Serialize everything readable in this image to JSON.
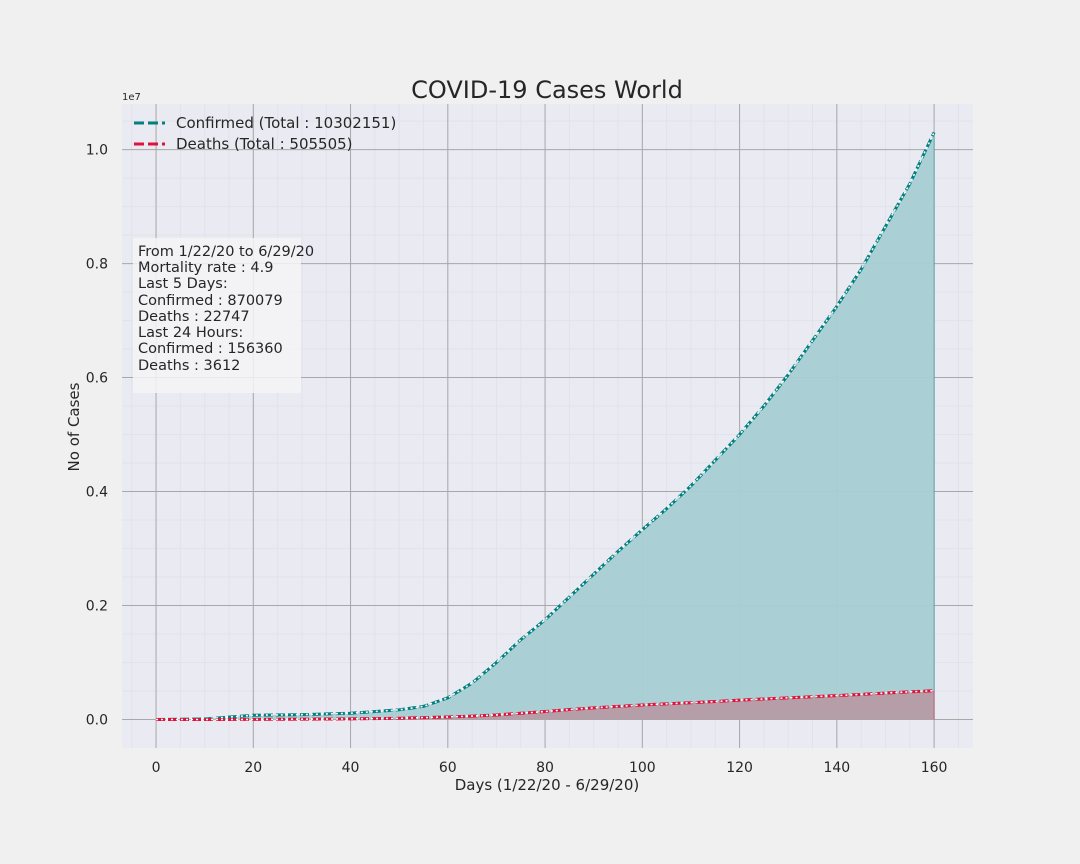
{
  "chart_data": {
    "type": "area",
    "title": "COVID-19 Cases World",
    "xlabel": "Days (1/22/20 - 6/29/20)",
    "ylabel": "No of Cases",
    "y_exponent_label": "1e7",
    "xlim": [
      -7,
      168
    ],
    "ylim": [
      -500000,
      10800000
    ],
    "x_ticks": [
      0,
      20,
      40,
      60,
      80,
      100,
      120,
      140,
      160
    ],
    "x_tick_labels": [
      "0",
      "20",
      "40",
      "60",
      "80",
      "100",
      "120",
      "140",
      "160"
    ],
    "y_ticks": [
      0,
      2000000,
      4000000,
      6000000,
      8000000,
      10000000
    ],
    "y_tick_labels": [
      "0.0",
      "0.2",
      "0.4",
      "0.6",
      "0.8",
      "1.0"
    ],
    "grid": true,
    "legend_position": "top-left",
    "series": [
      {
        "name": "Confirmed (Total : 10302151)",
        "color": "#008080",
        "fill": "#a6cfd3",
        "x": [
          0,
          10,
          20,
          30,
          40,
          50,
          55,
          60,
          65,
          70,
          75,
          80,
          85,
          90,
          95,
          100,
          105,
          110,
          115,
          120,
          125,
          130,
          135,
          140,
          145,
          150,
          155,
          160
        ],
        "values": [
          555,
          9800,
          75000,
          85000,
          110000,
          170000,
          230000,
          380000,
          640000,
          1000000,
          1400000,
          1750000,
          2150000,
          2550000,
          2950000,
          3330000,
          3700000,
          4100000,
          4550000,
          5000000,
          5500000,
          6050000,
          6650000,
          7250000,
          7900000,
          8650000,
          9400000,
          10302151
        ]
      },
      {
        "name": "Deaths (Total : 505505)",
        "color": "#dc143c",
        "fill": "#b59ba4",
        "x": [
          0,
          10,
          20,
          30,
          40,
          50,
          60,
          65,
          70,
          75,
          80,
          85,
          90,
          95,
          100,
          105,
          110,
          115,
          120,
          125,
          130,
          135,
          140,
          145,
          150,
          155,
          160
        ],
        "values": [
          17,
          200,
          2000,
          6000,
          11000,
          21000,
          45000,
          60000,
          80000,
          110000,
          140000,
          175000,
          205000,
          230000,
          255000,
          275000,
          295000,
          315000,
          340000,
          360000,
          380000,
          400000,
          420000,
          440000,
          465000,
          485000,
          505505
        ]
      }
    ],
    "info_box": {
      "position": "left, upper-middle",
      "lines": [
        "From 1/22/20 to 6/29/20",
        "Mortality rate : 4.9",
        "Last 5 Days:",
        "Confirmed : 870079",
        "Deaths : 22747",
        "Last 24 Hours:",
        "Confirmed : 156360",
        "Deaths : 3612"
      ]
    }
  },
  "colors": {
    "background": "#f0f0f0",
    "plot_background": "#eaeaf2",
    "major_grid": "#a8a8a8",
    "minor_grid": "#e2e2ec"
  }
}
